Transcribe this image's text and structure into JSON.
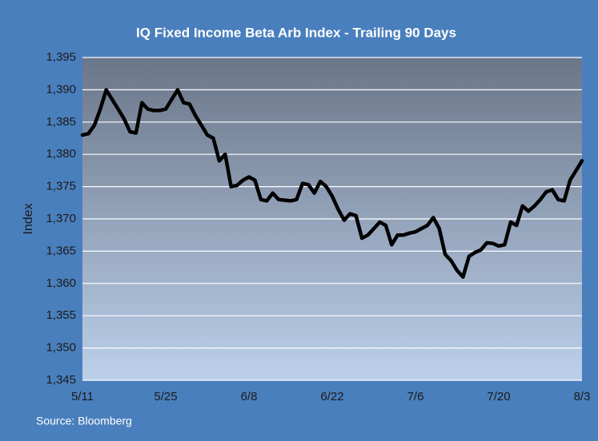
{
  "chart_data": {
    "type": "line",
    "title": "IQ Fixed Income Beta Arb Index - Trailing 90 Days",
    "y_label": "Index",
    "source": "Source: Bloomberg",
    "categories": [
      "5/11",
      null,
      null,
      null,
      null,
      null,
      null,
      null,
      null,
      null,
      null,
      null,
      null,
      null,
      "5/25",
      null,
      null,
      null,
      null,
      null,
      null,
      null,
      null,
      null,
      null,
      null,
      null,
      null,
      "6/8",
      null,
      null,
      null,
      null,
      null,
      null,
      null,
      null,
      null,
      null,
      null,
      null,
      null,
      "6/22",
      null,
      null,
      null,
      null,
      null,
      null,
      null,
      null,
      null,
      null,
      null,
      null,
      null,
      "7/6",
      null,
      null,
      null,
      null,
      null,
      null,
      null,
      null,
      null,
      null,
      null,
      null,
      null,
      "7/20",
      null,
      null,
      null,
      null,
      null,
      null,
      null,
      null,
      null,
      null,
      null,
      null,
      null,
      "8/3"
    ],
    "series": [
      {
        "name": "IQ Fixed Income Beta Arb Index",
        "color": "#000000",
        "values": [
          1383,
          1383.2,
          1384.5,
          1387,
          1390,
          1388.5,
          1387,
          1385.5,
          1383.5,
          1383.3,
          1388,
          1387,
          1386.8,
          1386.8,
          1387,
          1388.5,
          1390,
          1388,
          1387.8,
          1386,
          1384.5,
          1383,
          1382.5,
          1379,
          1380,
          1375,
          1375.2,
          1376,
          1376.5,
          1376,
          1373,
          1372.8,
          1374,
          1373,
          1372.9,
          1372.8,
          1373,
          1375.5,
          1375.3,
          1374,
          1375.8,
          1375,
          1373.5,
          1371.5,
          1369.8,
          1370.8,
          1370.5,
          1367,
          1367.5,
          1368.5,
          1369.5,
          1369,
          1366,
          1367.5,
          1367.5,
          1367.8,
          1368,
          1368.5,
          1369,
          1370.2,
          1368.5,
          1364.5,
          1363.5,
          1362,
          1361,
          1364.2,
          1364.8,
          1365.2,
          1366.3,
          1366.2,
          1365.8,
          1366,
          1369.5,
          1369,
          1372,
          1371.2,
          1372,
          1373,
          1374.2,
          1374.5,
          1373,
          1372.8,
          1376,
          1377.5,
          1379
        ]
      }
    ],
    "ylim": [
      1345,
      1395
    ],
    "yticks": [
      {
        "value": 1345,
        "label": "1,345"
      },
      {
        "value": 1350,
        "label": "1,350"
      },
      {
        "value": 1355,
        "label": "1,355"
      },
      {
        "value": 1360,
        "label": "1,360"
      },
      {
        "value": 1365,
        "label": "1,365"
      },
      {
        "value": 1370,
        "label": "1,370"
      },
      {
        "value": 1375,
        "label": "1,375"
      },
      {
        "value": 1380,
        "label": "1,380"
      },
      {
        "value": 1385,
        "label": "1,385"
      },
      {
        "value": 1390,
        "label": "1,390"
      },
      {
        "value": 1395,
        "label": "1,395"
      }
    ],
    "grid": true
  }
}
